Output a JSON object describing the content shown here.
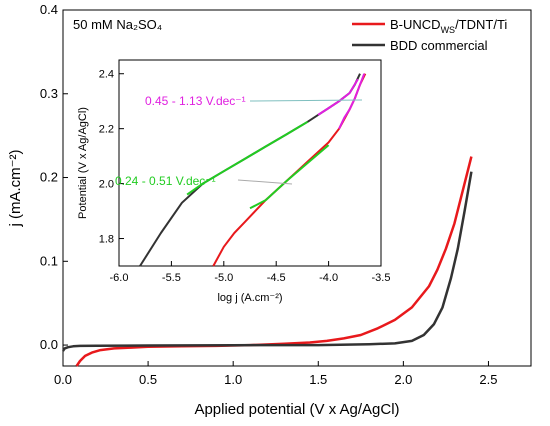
{
  "main_chart": {
    "note": "50 mM Na₂SO₄",
    "xlabel": "Applied potential (V x Ag/AgCl)",
    "ylabel": "j (mA.cm⁻²)",
    "xlim": [
      0.0,
      2.75
    ],
    "ylim": [
      -0.025,
      0.4
    ],
    "xticks": [
      0.0,
      0.5,
      1.0,
      1.5,
      2.0,
      2.5
    ],
    "xtick_labels": [
      "0.0",
      "0.5",
      "1.0",
      "1.5",
      "2.0",
      "2.5"
    ],
    "yticks": [
      0.0,
      0.1,
      0.2,
      0.3,
      0.4
    ],
    "ytick_labels": [
      "0.0",
      "0.1",
      "0.2",
      "0.3",
      "0.4"
    ]
  },
  "legend": {
    "items": [
      {
        "label_main": "B-UNCD",
        "label_sub": "WS",
        "label_rest": "/TDNT/Ti",
        "color": "#e8191c"
      },
      {
        "label_main": "BDD commercial",
        "label_sub": "",
        "label_rest": "",
        "color": "#333333"
      }
    ]
  },
  "inset": {
    "xlabel": "log j (A.cm⁻²)",
    "ylabel": "Potential (V x Ag/AgCl)",
    "xlim": [
      -6.0,
      -3.5
    ],
    "ylim": [
      1.7,
      2.45
    ],
    "xticks": [
      -6.0,
      -5.5,
      -5.0,
      -4.5,
      -4.0,
      -3.5
    ],
    "xtick_labels": [
      "-6.0",
      "-5.5",
      "-5.0",
      "-4.5",
      "-4.0",
      "-3.5"
    ],
    "yticks": [
      1.8,
      2.0,
      2.2,
      2.4
    ],
    "ytick_labels": [
      "1.8",
      "2.0",
      "2.2",
      "2.4"
    ],
    "annotations": [
      {
        "text": "0.45 - 1.13 V.dec⁻¹",
        "color": "#e020e0"
      },
      {
        "text": "0.24  - 0.51 V.dec⁻¹",
        "color": "#22cc22"
      }
    ]
  },
  "chart_data": [
    {
      "type": "line",
      "title": "",
      "xlabel": "Applied potential (V x Ag/AgCl)",
      "ylabel": "j (mA.cm⁻²)",
      "xlim": [
        0.0,
        2.75
      ],
      "ylim": [
        -0.025,
        0.4
      ],
      "grid": false,
      "legend_position": "top-right",
      "series": [
        {
          "name": "B-UNCD_WS/TDNT/Ti",
          "color": "#e8191c",
          "x": [
            0.08,
            0.1,
            0.13,
            0.17,
            0.22,
            0.3,
            0.4,
            0.5,
            0.7,
            0.9,
            1.1,
            1.3,
            1.45,
            1.55,
            1.65,
            1.75,
            1.85,
            1.95,
            2.05,
            2.15,
            2.2,
            2.25,
            2.3,
            2.35,
            2.4
          ],
          "y": [
            -0.025,
            -0.019,
            -0.013,
            -0.009,
            -0.006,
            -0.004,
            -0.003,
            -0.002,
            -0.0015,
            -0.001,
            0.0,
            0.0015,
            0.003,
            0.005,
            0.008,
            0.012,
            0.02,
            0.03,
            0.045,
            0.07,
            0.09,
            0.115,
            0.145,
            0.185,
            0.225
          ]
        },
        {
          "name": "BDD commercial",
          "color": "#333333",
          "x": [
            0.0,
            0.01,
            0.03,
            0.06,
            0.1,
            0.2,
            0.5,
            1.0,
            1.5,
            1.8,
            1.95,
            2.05,
            2.12,
            2.18,
            2.23,
            2.28,
            2.32,
            2.36,
            2.4
          ],
          "y": [
            -0.007,
            -0.004,
            -0.0025,
            -0.0015,
            -0.001,
            -0.0008,
            -0.0005,
            -0.0002,
            0.0,
            0.001,
            0.002,
            0.005,
            0.012,
            0.025,
            0.045,
            0.08,
            0.115,
            0.16,
            0.207
          ]
        }
      ]
    },
    {
      "type": "line",
      "title": "",
      "xlabel": "log j (A.cm⁻²)",
      "ylabel": "Potential (V x Ag/AgCl)",
      "xlim": [
        -6.0,
        -3.5
      ],
      "ylim": [
        1.7,
        2.45
      ],
      "grid": false,
      "series": [
        {
          "name": "B-UNCD_WS/TDNT/Ti",
          "color": "#e8191c",
          "x": [
            -5.1,
            -5.0,
            -4.9,
            -4.8,
            -4.7,
            -4.6,
            -4.5,
            -4.4,
            -4.3,
            -4.2,
            -4.1,
            -4.0,
            -3.9,
            -3.8,
            -3.75,
            -3.7,
            -3.65
          ],
          "y": [
            1.7,
            1.77,
            1.82,
            1.86,
            1.9,
            1.94,
            1.975,
            2.01,
            2.045,
            2.08,
            2.115,
            2.15,
            2.2,
            2.27,
            2.31,
            2.36,
            2.4
          ]
        },
        {
          "name": "BDD commercial",
          "color": "#333333",
          "x": [
            -5.8,
            -5.6,
            -5.4,
            -5.2,
            -5.0,
            -4.8,
            -4.6,
            -4.4,
            -4.2,
            -4.1,
            -4.0,
            -3.9,
            -3.8,
            -3.75,
            -3.7
          ],
          "y": [
            1.7,
            1.82,
            1.93,
            2.0,
            2.045,
            2.09,
            2.135,
            2.18,
            2.225,
            2.25,
            2.275,
            2.3,
            2.33,
            2.36,
            2.4
          ]
        },
        {
          "name": "",
          "color": "#22cc22",
          "x": [
            -5.35,
            -5.2,
            -5.0,
            -4.8,
            -4.6,
            -4.4,
            -4.2
          ],
          "y": [
            1.96,
            2.0,
            2.045,
            2.09,
            2.135,
            2.18,
            2.225
          ]
        },
        {
          "name": "",
          "color": "#22cc22",
          "x": [
            -4.75,
            -4.6,
            -4.4,
            -4.2,
            -4.0
          ],
          "y": [
            1.91,
            1.94,
            2.01,
            2.075,
            2.14
          ]
        },
        {
          "name": "",
          "color": "#e020e0",
          "x": [
            -4.1,
            -4.0,
            -3.9,
            -3.8,
            -3.72
          ],
          "y": [
            2.25,
            2.275,
            2.3,
            2.33,
            2.38
          ]
        },
        {
          "name": "",
          "color": "#e020e0",
          "x": [
            -3.9,
            -3.85,
            -3.8,
            -3.75,
            -3.7,
            -3.66
          ],
          "y": [
            2.2,
            2.24,
            2.27,
            2.31,
            2.36,
            2.4
          ]
        }
      ]
    }
  ]
}
